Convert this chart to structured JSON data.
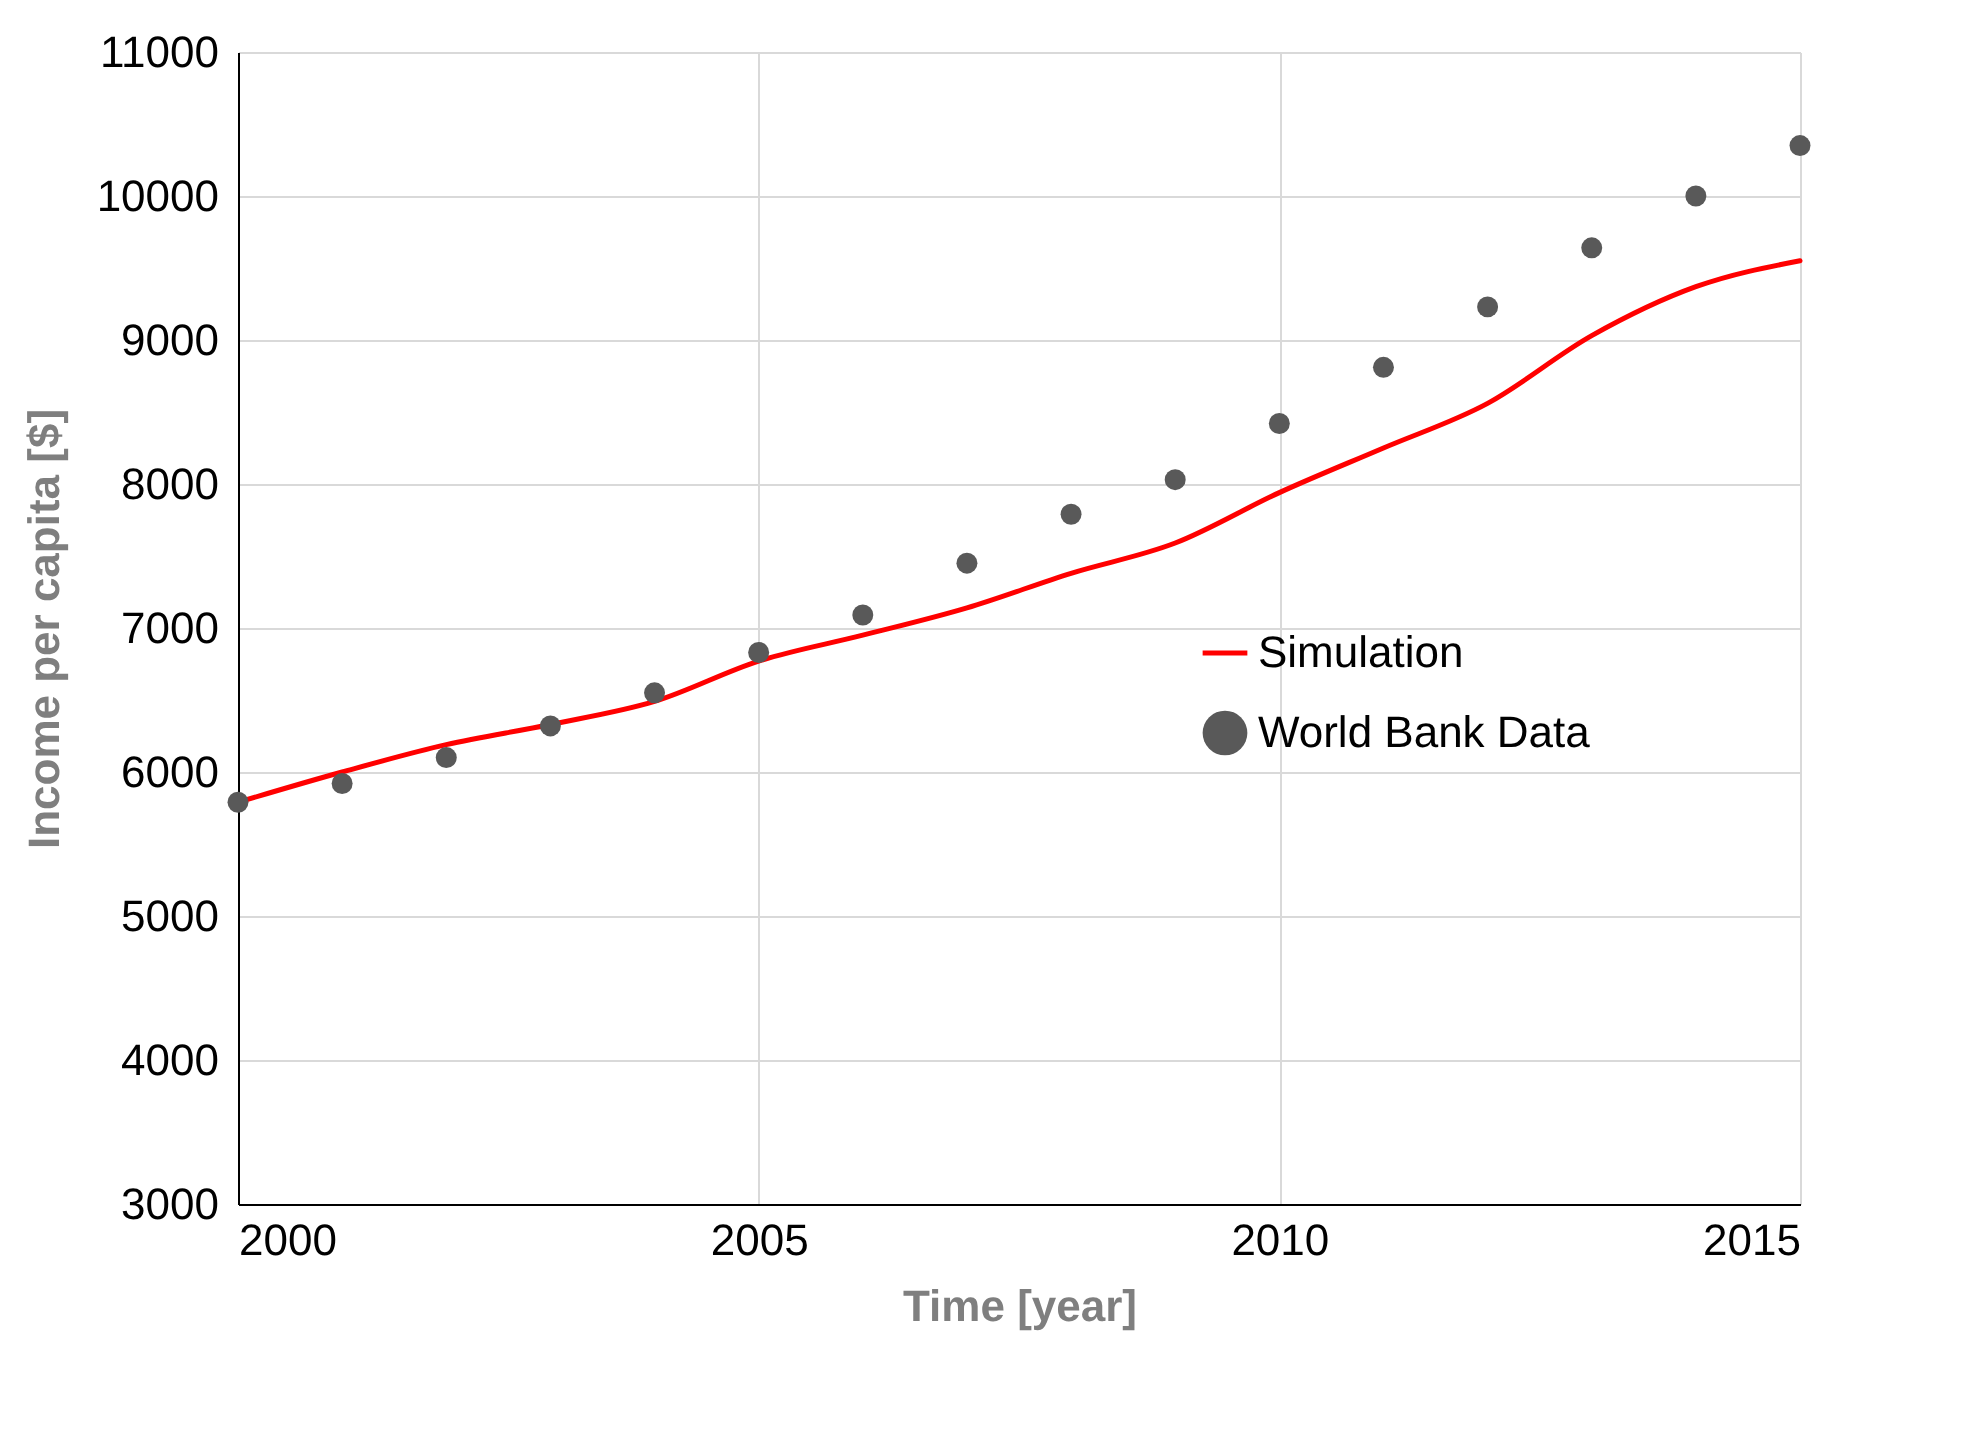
{
  "chart_data": {
    "type": "line",
    "xlabel": "Time [year]",
    "ylabel": "Income per capita [$]",
    "x": [
      2000,
      2001,
      2002,
      2003,
      2004,
      2005,
      2006,
      2007,
      2008,
      2009,
      2010,
      2011,
      2012,
      2013,
      2014,
      2015
    ],
    "series": [
      {
        "name": "Simulation",
        "color": "#ff0000",
        "values": [
          5790,
          6000,
          6190,
          6330,
          6490,
          6770,
          6950,
          7140,
          7380,
          7590,
          7940,
          8250,
          8560,
          9030,
          9370,
          9550
        ]
      },
      {
        "name": "World Bank Data",
        "type": "scatter",
        "marker": "circle",
        "color": "#595959",
        "values": [
          5790,
          5920,
          6100,
          6320,
          6550,
          6830,
          7090,
          7450,
          7790,
          8030,
          8420,
          8810,
          9230,
          9640,
          10000,
          10350
        ]
      }
    ],
    "xlim": [
      2000,
      2015
    ],
    "xticks": [
      2000,
      2005,
      2010,
      2015
    ],
    "ylim": [
      3000,
      11000
    ],
    "yticks": [
      3000,
      4000,
      5000,
      6000,
      7000,
      8000,
      9000,
      10000,
      11000
    ],
    "grid": true,
    "legend": "right"
  }
}
